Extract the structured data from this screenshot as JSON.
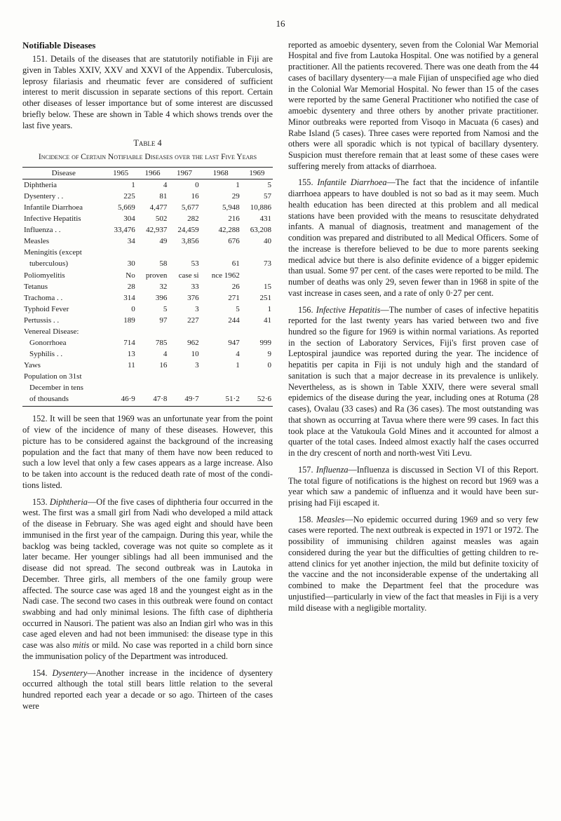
{
  "page_number": "16",
  "left": {
    "section_heading": "Notifiable Diseases",
    "p151": "151. Details of the diseases that are statutorily notifiable in Fiji are given in Tables XXIV, XXV and XXVI of the Appendix. Tuberculosis, leprosy filariasis and rheumatic fever are considered of sufficient interest to merit discussion in separate sections of this report. Certain other diseases of lesser importance but of some interest are discussed briefly below. These are shown in Table 4 which shows trends over the last five years.",
    "table_caption": "Table 4",
    "table_subtitle": "Incidence of Certain Notifiable Diseases over the last Five Years",
    "table_head": [
      "Disease",
      "1965",
      "1966",
      "1967",
      "1968",
      "1969"
    ],
    "rows": [
      {
        "d": "Diphtheria",
        "c": [
          "1",
          "4",
          "0",
          "1",
          "5"
        ]
      },
      {
        "d": "Dysentery . .",
        "c": [
          "225",
          "81",
          "16",
          "29",
          "57"
        ]
      },
      {
        "d": "Infantile Diarrhoea",
        "c": [
          "5,669",
          "4,477",
          "5,677",
          "5,948",
          "10,886"
        ]
      },
      {
        "d": "Infective Hepatitis",
        "c": [
          "304",
          "502",
          "282",
          "216",
          "431"
        ]
      },
      {
        "d": "Influenza . .",
        "c": [
          "33,476",
          "42,937",
          "24,459",
          "42,288",
          "63,208"
        ]
      },
      {
        "d": "Measles",
        "c": [
          "34",
          "49",
          "3,856",
          "676",
          "40"
        ]
      },
      {
        "d": "Meningitis (except",
        "c": [
          "",
          "",
          "",
          "",
          ""
        ]
      },
      {
        "d": "tuberculous)",
        "c": [
          "30",
          "58",
          "53",
          "61",
          "73"
        ],
        "indent": true
      },
      {
        "d": "Poliomyelitis",
        "c": [
          "No",
          "proven",
          "case si",
          "nce 1962",
          ""
        ]
      },
      {
        "d": "Tetanus",
        "c": [
          "28",
          "32",
          "33",
          "26",
          "15"
        ]
      },
      {
        "d": "Trachoma . .",
        "c": [
          "314",
          "396",
          "376",
          "271",
          "251"
        ]
      },
      {
        "d": "Typhoid Fever",
        "c": [
          "0",
          "5",
          "3",
          "5",
          "1"
        ]
      },
      {
        "d": "Pertussis . .",
        "c": [
          "189",
          "97",
          "227",
          "244",
          "41"
        ]
      },
      {
        "d": "Venereal Disease:",
        "c": [
          "",
          "",
          "",
          "",
          ""
        ]
      },
      {
        "d": "Gonorrhoea",
        "c": [
          "714",
          "785",
          "962",
          "947",
          "999"
        ],
        "indent": true
      },
      {
        "d": "Syphilis . .",
        "c": [
          "13",
          "4",
          "10",
          "4",
          "9"
        ],
        "indent": true
      },
      {
        "d": "Yaws",
        "c": [
          "11",
          "16",
          "3",
          "1",
          "0"
        ]
      },
      {
        "d": "Population on 31st",
        "c": [
          "",
          "",
          "",
          "",
          ""
        ]
      },
      {
        "d": "December in tens",
        "c": [
          "",
          "",
          "",
          "",
          ""
        ],
        "indent": true
      },
      {
        "d": "of thousands",
        "c": [
          "46·9",
          "47·8",
          "49·7",
          "51·2",
          "52·6"
        ],
        "indent": true,
        "last": true
      }
    ],
    "p152": "152. It will be seen that 1969 was an unfortunate year from the point of view of the incidence of many of these diseases. However, this picture has to be considered against the background of the increasing population and the fact that many of them have now been reduced to such a low level that only a few cases appears as a large increase. Also to be taken into account is the reduced death rate of most of the condi­tions listed.",
    "p153_lead": "153. ",
    "p153_italic": "Diphtheria",
    "p153_rest": "—Of the five cases of diphtheria four occurred in the west. The first was a small girl from Nadi who developed a mild attack of the disease in February. She was aged eight and should have been immunised in the first year of the campaign. During this year, while the backlog was being tackled, coverage was not quite so complete as it later became. Her younger siblings had all been immunised and the disease did not spread. The second outbreak was in Lautoka in December. Three girls, all members of the one family group were affected. The source case was aged 18 and the youngest eight as in the Nadi case. The second two cases in this outbreak were found on contact swabbing and had only minimal lesions. The fifth case of diphtheria occurred in Nausori. The patient was also an Indian girl who was in this case aged eleven and had not been immunised: the disease type in this case was also ",
    "p153_italic2": "mitis",
    "p153_rest2": " or mild. No case was reported in a child born since the immunisation policy of the Department was introduced.",
    "p154_lead": "154. ",
    "p154_italic": "Dysentery",
    "p154_rest": "—Another increase in the incidence of dysentery occurred although the total still bears little relation to the several hundred reported each year a decade or so ago. Thirteen of the cases were"
  },
  "right": {
    "p_cont": "reported as amoebic dysentery, seven from the Colonial War Memorial Hospital and five from Lautoka Hospital. One was notified by a general practitioner. All the patients recovered. There was one death from the 44 cases of bacillary dysentery—a male Fijian of unspecified age who died in the Colonial War Memorial Hospital. No fewer than 15 of the cases were reported by the same General Practitioner who notified the case of amoebic dysentery and three others by another private practitioner. Minor outbreaks were reported from Visoqo in Macuata (6 cases) and Rabe Island (5 cases). Three cases were reported from Namosi and the others were all sporadic which is not typical of bacillary dysentery. Suspicion must therefore remain that at least some of these cases were suffering merely from attacks of diarrhoea.",
    "p155_lead": "155. ",
    "p155_italic": "Infantile Diarrhoea",
    "p155_rest": "—The fact that the incidence of infantile diarrhoea appears to have doubled is not so bad as it may seem. Much health education has been directed at this problem and all medical stations have been provided with the means to resuscitate dehydrated infants. A manual of diagnosis, treatment and management of the condition was prepared and distributed to all Medical Officers. Some of the increase is therefore believed to be due to more parents seeking medical advice but there is also definite evidence of a bigger epidemic than usual. Some 97 per cent. of the cases were reported to be mild. The number of deaths was only 29, seven fewer than in 1968 in spite of the vast increase in cases seen, and a rate of only 0·27 per cent.",
    "p156_lead": "156. ",
    "p156_italic": "Infective Hepatitis",
    "p156_rest": "—The number of cases of infective hepatitis reported for the last twenty years has varied between two and five hundred so the figure for 1969 is within normal variations. As reported in the section of Laboratory Services, Fiji's first proven case of Leptospiral jaundice was reported during the year. The incidence of hepatitis per capita in Fiji is not unduly high and the standard of sanitation is such that a major decrease in its prevalence is unlikely. Nevertheless, as is shown in Table XXIV, there were several small epidemics of the disease during the year, including ones at Rotuma (28 cases), Ovalau (33 cases) and Ra (36 cases). The most outstanding was that shown as occurring at Tavua where there were 99 cases. In fact this took place at the Vatukoula Gold Mines and it accounted for almost a quarter of the total cases. Indeed almost exactly half the cases occurred in the dry crescent of north and north-west Viti Levu.",
    "p157_lead": "157. ",
    "p157_italic": "Influenza",
    "p157_rest": "—Influenza is discussed in Section VI of this Report. The total figure of notifications is the highest on record but 1969 was a year which saw a pandemic of influenza and it would have been sur­prising had Fiji escaped it.",
    "p158_lead": "158. ",
    "p158_italic": "Measles",
    "p158_rest": "—No epidemic occurred during 1969 and so very few cases were reported. The next outbreak is expected in 1971 or 1972. The possibility of immunising children against measles was again considered during the year but the difficulties of getting children to re-attend clinics for yet another injection, the mild but definite toxicity of the vaccine and the not inconsiderable expense of the undertaking all combined to make the Department feel that the procedure was unjustified—particularly in view of the fact that measles in Fiji is a very mild disease with a negligible mortality."
  }
}
